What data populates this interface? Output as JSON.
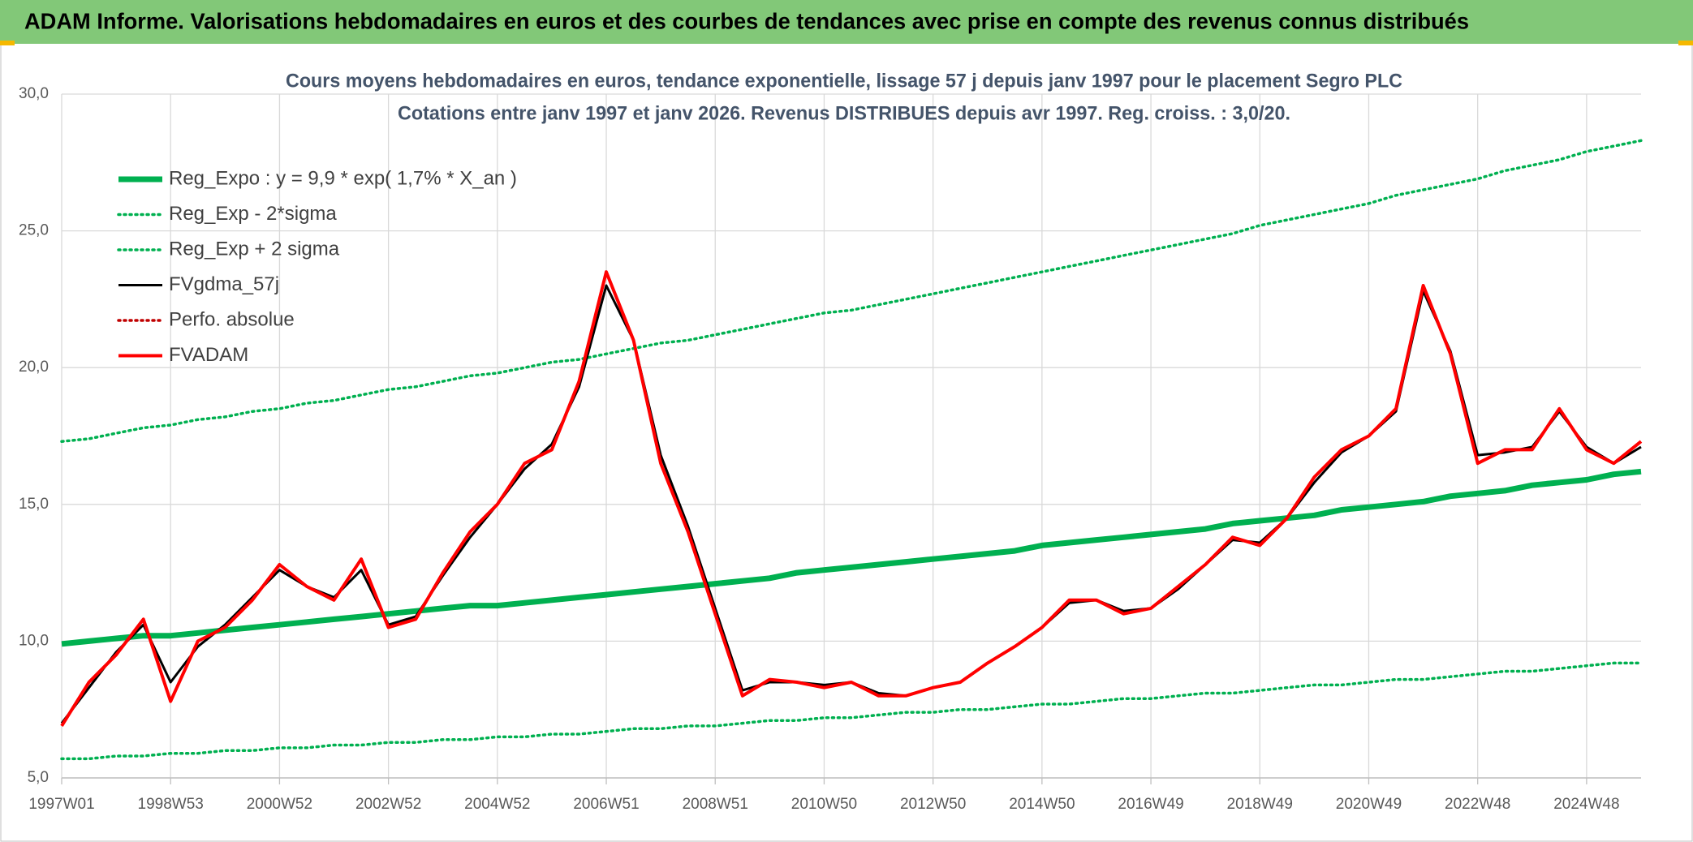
{
  "header": {
    "title": "ADAM Informe. Valorisations hebdomadaires en euros et des courbes de tendances avec prise en compte des revenus connus distribués"
  },
  "chart_data": {
    "type": "line",
    "title": "Cours moyens hebdomadaires en euros, tendance exponentielle, lissage 57 j depuis janv 1997 pour le placement Segro PLC",
    "subtitle": "Cotations entre janv 1997 et janv 2026. Revenus DISTRIBUES depuis avr 1997. Reg. croiss. : 3,0/20.",
    "categories": [
      "1997W01",
      null,
      null,
      null,
      "1998W53",
      null,
      null,
      null,
      "2000W52",
      null,
      null,
      null,
      "2002W52",
      null,
      null,
      null,
      "2004W52",
      null,
      null,
      null,
      "2006W51",
      null,
      null,
      null,
      "2008W51",
      null,
      null,
      null,
      "2010W50",
      null,
      null,
      null,
      "2012W50",
      null,
      null,
      null,
      "2014W50",
      null,
      null,
      null,
      "2016W49",
      null,
      null,
      null,
      "2018W49",
      null,
      null,
      null,
      "2020W49",
      null,
      null,
      null,
      "2022W48",
      null,
      null,
      null,
      "2024W48",
      null,
      null
    ],
    "ylim": [
      5,
      30
    ],
    "yticks": [
      {
        "value": 5,
        "label": "5,0"
      },
      {
        "value": 10,
        "label": "10,0"
      },
      {
        "value": 15,
        "label": "15,0"
      },
      {
        "value": 20,
        "label": "20,0"
      },
      {
        "value": 25,
        "label": "25,0"
      },
      {
        "value": 30,
        "label": "30,0"
      }
    ],
    "grid": true,
    "legend": "top-left",
    "series": [
      {
        "name": "Reg_Expo : y = 9,9 * exp( 1,7% *  X_an )",
        "color": "#00b050",
        "style": "thick",
        "values": [
          9.9,
          10.0,
          10.1,
          10.2,
          10.2,
          10.3,
          10.4,
          10.5,
          10.6,
          10.7,
          10.8,
          10.9,
          11.0,
          11.1,
          11.2,
          11.3,
          11.3,
          11.4,
          11.5,
          11.6,
          11.7,
          11.8,
          11.9,
          12.0,
          12.1,
          12.2,
          12.3,
          12.5,
          12.6,
          12.7,
          12.8,
          12.9,
          13.0,
          13.1,
          13.2,
          13.3,
          13.5,
          13.6,
          13.7,
          13.8,
          13.9,
          14.0,
          14.1,
          14.3,
          14.4,
          14.5,
          14.6,
          14.8,
          14.9,
          15.0,
          15.1,
          15.3,
          15.4,
          15.5,
          15.7,
          15.8,
          15.9,
          16.1,
          16.2
        ]
      },
      {
        "name": "Reg_Exp - 2*sigma",
        "color": "#00b050",
        "style": "dotted",
        "values": [
          5.7,
          5.7,
          5.8,
          5.8,
          5.9,
          5.9,
          6.0,
          6.0,
          6.1,
          6.1,
          6.2,
          6.2,
          6.3,
          6.3,
          6.4,
          6.4,
          6.5,
          6.5,
          6.6,
          6.6,
          6.7,
          6.8,
          6.8,
          6.9,
          6.9,
          7.0,
          7.1,
          7.1,
          7.2,
          7.2,
          7.3,
          7.4,
          7.4,
          7.5,
          7.5,
          7.6,
          7.7,
          7.7,
          7.8,
          7.9,
          7.9,
          8.0,
          8.1,
          8.1,
          8.2,
          8.3,
          8.4,
          8.4,
          8.5,
          8.6,
          8.6,
          8.7,
          8.8,
          8.9,
          8.9,
          9.0,
          9.1,
          9.2,
          9.2
        ]
      },
      {
        "name": "Reg_Exp + 2 sigma",
        "color": "#00b050",
        "style": "dotted",
        "values": [
          17.3,
          17.4,
          17.6,
          17.8,
          17.9,
          18.1,
          18.2,
          18.4,
          18.5,
          18.7,
          18.8,
          19.0,
          19.2,
          19.3,
          19.5,
          19.7,
          19.8,
          20.0,
          20.2,
          20.3,
          20.5,
          20.7,
          20.9,
          21.0,
          21.2,
          21.4,
          21.6,
          21.8,
          22.0,
          22.1,
          22.3,
          22.5,
          22.7,
          22.9,
          23.1,
          23.3,
          23.5,
          23.7,
          23.9,
          24.1,
          24.3,
          24.5,
          24.7,
          24.9,
          25.2,
          25.4,
          25.6,
          25.8,
          26.0,
          26.3,
          26.5,
          26.7,
          26.9,
          27.2,
          27.4,
          27.6,
          27.9,
          28.1,
          28.3
        ]
      },
      {
        "name": "FVgdma_57j",
        "color": "#000000",
        "style": "solid",
        "values": [
          7.0,
          8.3,
          9.6,
          10.6,
          8.5,
          9.8,
          10.6,
          11.6,
          12.6,
          12.0,
          11.6,
          12.6,
          10.6,
          10.9,
          12.4,
          13.8,
          15.0,
          16.3,
          17.2,
          19.3,
          23.0,
          21.0,
          16.8,
          14.2,
          11.2,
          8.2,
          8.5,
          8.5,
          8.4,
          8.5,
          8.1,
          8.0,
          8.3,
          8.5,
          9.2,
          9.8,
          10.5,
          11.4,
          11.5,
          11.1,
          11.2,
          11.9,
          12.8,
          13.7,
          13.6,
          14.5,
          15.8,
          16.9,
          17.5,
          18.4,
          22.8,
          20.6,
          16.8,
          16.9,
          17.1,
          18.4,
          17.1,
          16.5,
          17.1
        ]
      },
      {
        "name": "Perfo. absolue",
        "color": "#c00000",
        "style": "dotted",
        "values": [
          null,
          null,
          null,
          null,
          null,
          null,
          null,
          null,
          null,
          null,
          null,
          null,
          null,
          null,
          null,
          null,
          null,
          null,
          null,
          null,
          null,
          null,
          null,
          null,
          null,
          null,
          null,
          null,
          null,
          null,
          null,
          null,
          null,
          null,
          null,
          null,
          null,
          null,
          null,
          null,
          null,
          null,
          null,
          null,
          null,
          null,
          null,
          null,
          null,
          null,
          null,
          null,
          null,
          null,
          null,
          null,
          null,
          null,
          null
        ]
      },
      {
        "name": "FVADAM",
        "color": "#ff0000",
        "style": "solid",
        "values": [
          6.9,
          8.5,
          9.5,
          10.8,
          7.8,
          10.0,
          10.5,
          11.5,
          12.8,
          12.0,
          11.5,
          13.0,
          10.5,
          10.8,
          12.5,
          14.0,
          15.0,
          16.5,
          17.0,
          19.5,
          23.5,
          21.0,
          16.5,
          14.0,
          11.0,
          8.0,
          8.6,
          8.5,
          8.3,
          8.5,
          8.0,
          8.0,
          8.3,
          8.5,
          9.2,
          9.8,
          10.5,
          11.5,
          11.5,
          11.0,
          11.2,
          12.0,
          12.8,
          13.8,
          13.5,
          14.5,
          16.0,
          17.0,
          17.5,
          18.5,
          23.0,
          20.5,
          16.5,
          17.0,
          17.0,
          18.5,
          17.0,
          16.5,
          17.3
        ]
      }
    ]
  }
}
